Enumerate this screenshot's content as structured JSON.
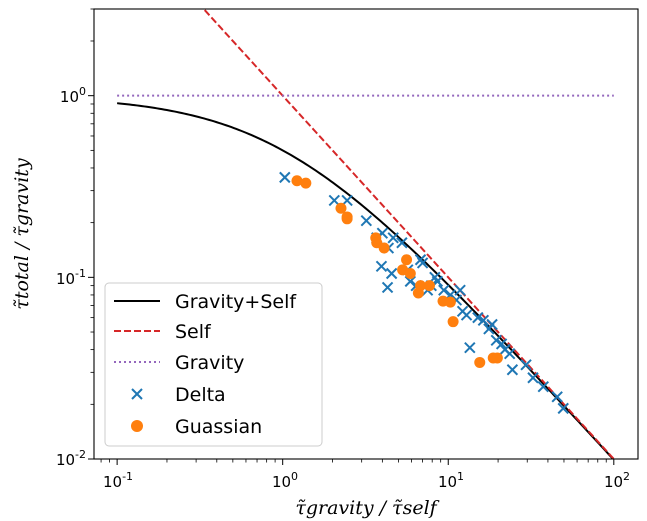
{
  "chart_data": {
    "type": "scatter",
    "title": "",
    "xlabel": "τ̃gravity / τ̃self",
    "ylabel": "τ̃total / τ̃gravity",
    "xscale": "log",
    "yscale": "log",
    "xlim": [
      0.0725,
      140
    ],
    "ylim": [
      0.01,
      3.0
    ],
    "x_tick_labels": [
      "10",
      "10",
      "10",
      "10"
    ],
    "x_tick_exponents": [
      "-1",
      "0",
      "1",
      "2"
    ],
    "x_tick_values": [
      0.1,
      1,
      10,
      100
    ],
    "y_tick_labels": [
      "10",
      "10",
      "10"
    ],
    "y_tick_exponents": [
      "-2",
      "-1",
      "0"
    ],
    "y_tick_values": [
      0.01,
      0.1,
      1
    ],
    "grid": false,
    "legend_position": "lower-left",
    "series": [
      {
        "name": "Gravity+Self",
        "kind": "line",
        "color": "#000000",
        "style": "solid",
        "formula": "1/(1+x)",
        "x_range": [
          0.1,
          100
        ]
      },
      {
        "name": "Self",
        "kind": "line",
        "color": "#d62728",
        "style": "dashed",
        "formula": "1/x",
        "x_range": [
          0.1,
          100
        ]
      },
      {
        "name": "Gravity",
        "kind": "line",
        "color": "#9467bd",
        "style": "dotted",
        "formula": "1",
        "x_range": [
          0.1,
          100
        ]
      },
      {
        "name": "Delta",
        "kind": "scatter",
        "marker": "x",
        "color": "#1f77b4",
        "points": [
          [
            1.03,
            0.355
          ],
          [
            2.05,
            0.265
          ],
          [
            2.45,
            0.265
          ],
          [
            3.2,
            0.205
          ],
          [
            3.7,
            0.165
          ],
          [
            3.95,
            0.115
          ],
          [
            4.0,
            0.175
          ],
          [
            4.3,
            0.088
          ],
          [
            4.35,
            0.145
          ],
          [
            4.55,
            0.105
          ],
          [
            4.65,
            0.165
          ],
          [
            5.25,
            0.155
          ],
          [
            5.7,
            0.11
          ],
          [
            5.9,
            0.095
          ],
          [
            6.4,
            0.09
          ],
          [
            6.8,
            0.125
          ],
          [
            7.0,
            0.12
          ],
          [
            7.5,
            0.085
          ],
          [
            7.9,
            0.09
          ],
          [
            8.3,
            0.1
          ],
          [
            8.6,
            0.095
          ],
          [
            9.4,
            0.085
          ],
          [
            10.3,
            0.08
          ],
          [
            11.2,
            0.075
          ],
          [
            11.8,
            0.085
          ],
          [
            12.2,
            0.065
          ],
          [
            12.9,
            0.062
          ],
          [
            13.5,
            0.041
          ],
          [
            15.1,
            0.06
          ],
          [
            16.3,
            0.058
          ],
          [
            17.6,
            0.052
          ],
          [
            18.4,
            0.055
          ],
          [
            19.5,
            0.045
          ],
          [
            21.0,
            0.043
          ],
          [
            22.0,
            0.04
          ],
          [
            23.5,
            0.038
          ],
          [
            24.4,
            0.031
          ],
          [
            29.5,
            0.033
          ],
          [
            32.5,
            0.028
          ],
          [
            37.5,
            0.025
          ],
          [
            45.5,
            0.022
          ],
          [
            49.5,
            0.019
          ]
        ]
      },
      {
        "name": "Guassian",
        "kind": "scatter",
        "marker": "o",
        "color": "#ff7f0e",
        "points": [
          [
            1.22,
            0.34
          ],
          [
            1.38,
            0.33
          ],
          [
            2.25,
            0.24
          ],
          [
            2.45,
            0.215
          ],
          [
            2.45,
            0.21
          ],
          [
            3.65,
            0.165
          ],
          [
            3.7,
            0.155
          ],
          [
            4.1,
            0.145
          ],
          [
            5.3,
            0.11
          ],
          [
            5.6,
            0.125
          ],
          [
            5.9,
            0.105
          ],
          [
            6.6,
            0.082
          ],
          [
            6.8,
            0.09
          ],
          [
            7.7,
            0.09
          ],
          [
            9.3,
            0.074
          ],
          [
            10.3,
            0.073
          ],
          [
            10.7,
            0.057
          ],
          [
            15.5,
            0.034
          ],
          [
            18.7,
            0.036
          ],
          [
            19.8,
            0.036
          ]
        ]
      }
    ]
  }
}
